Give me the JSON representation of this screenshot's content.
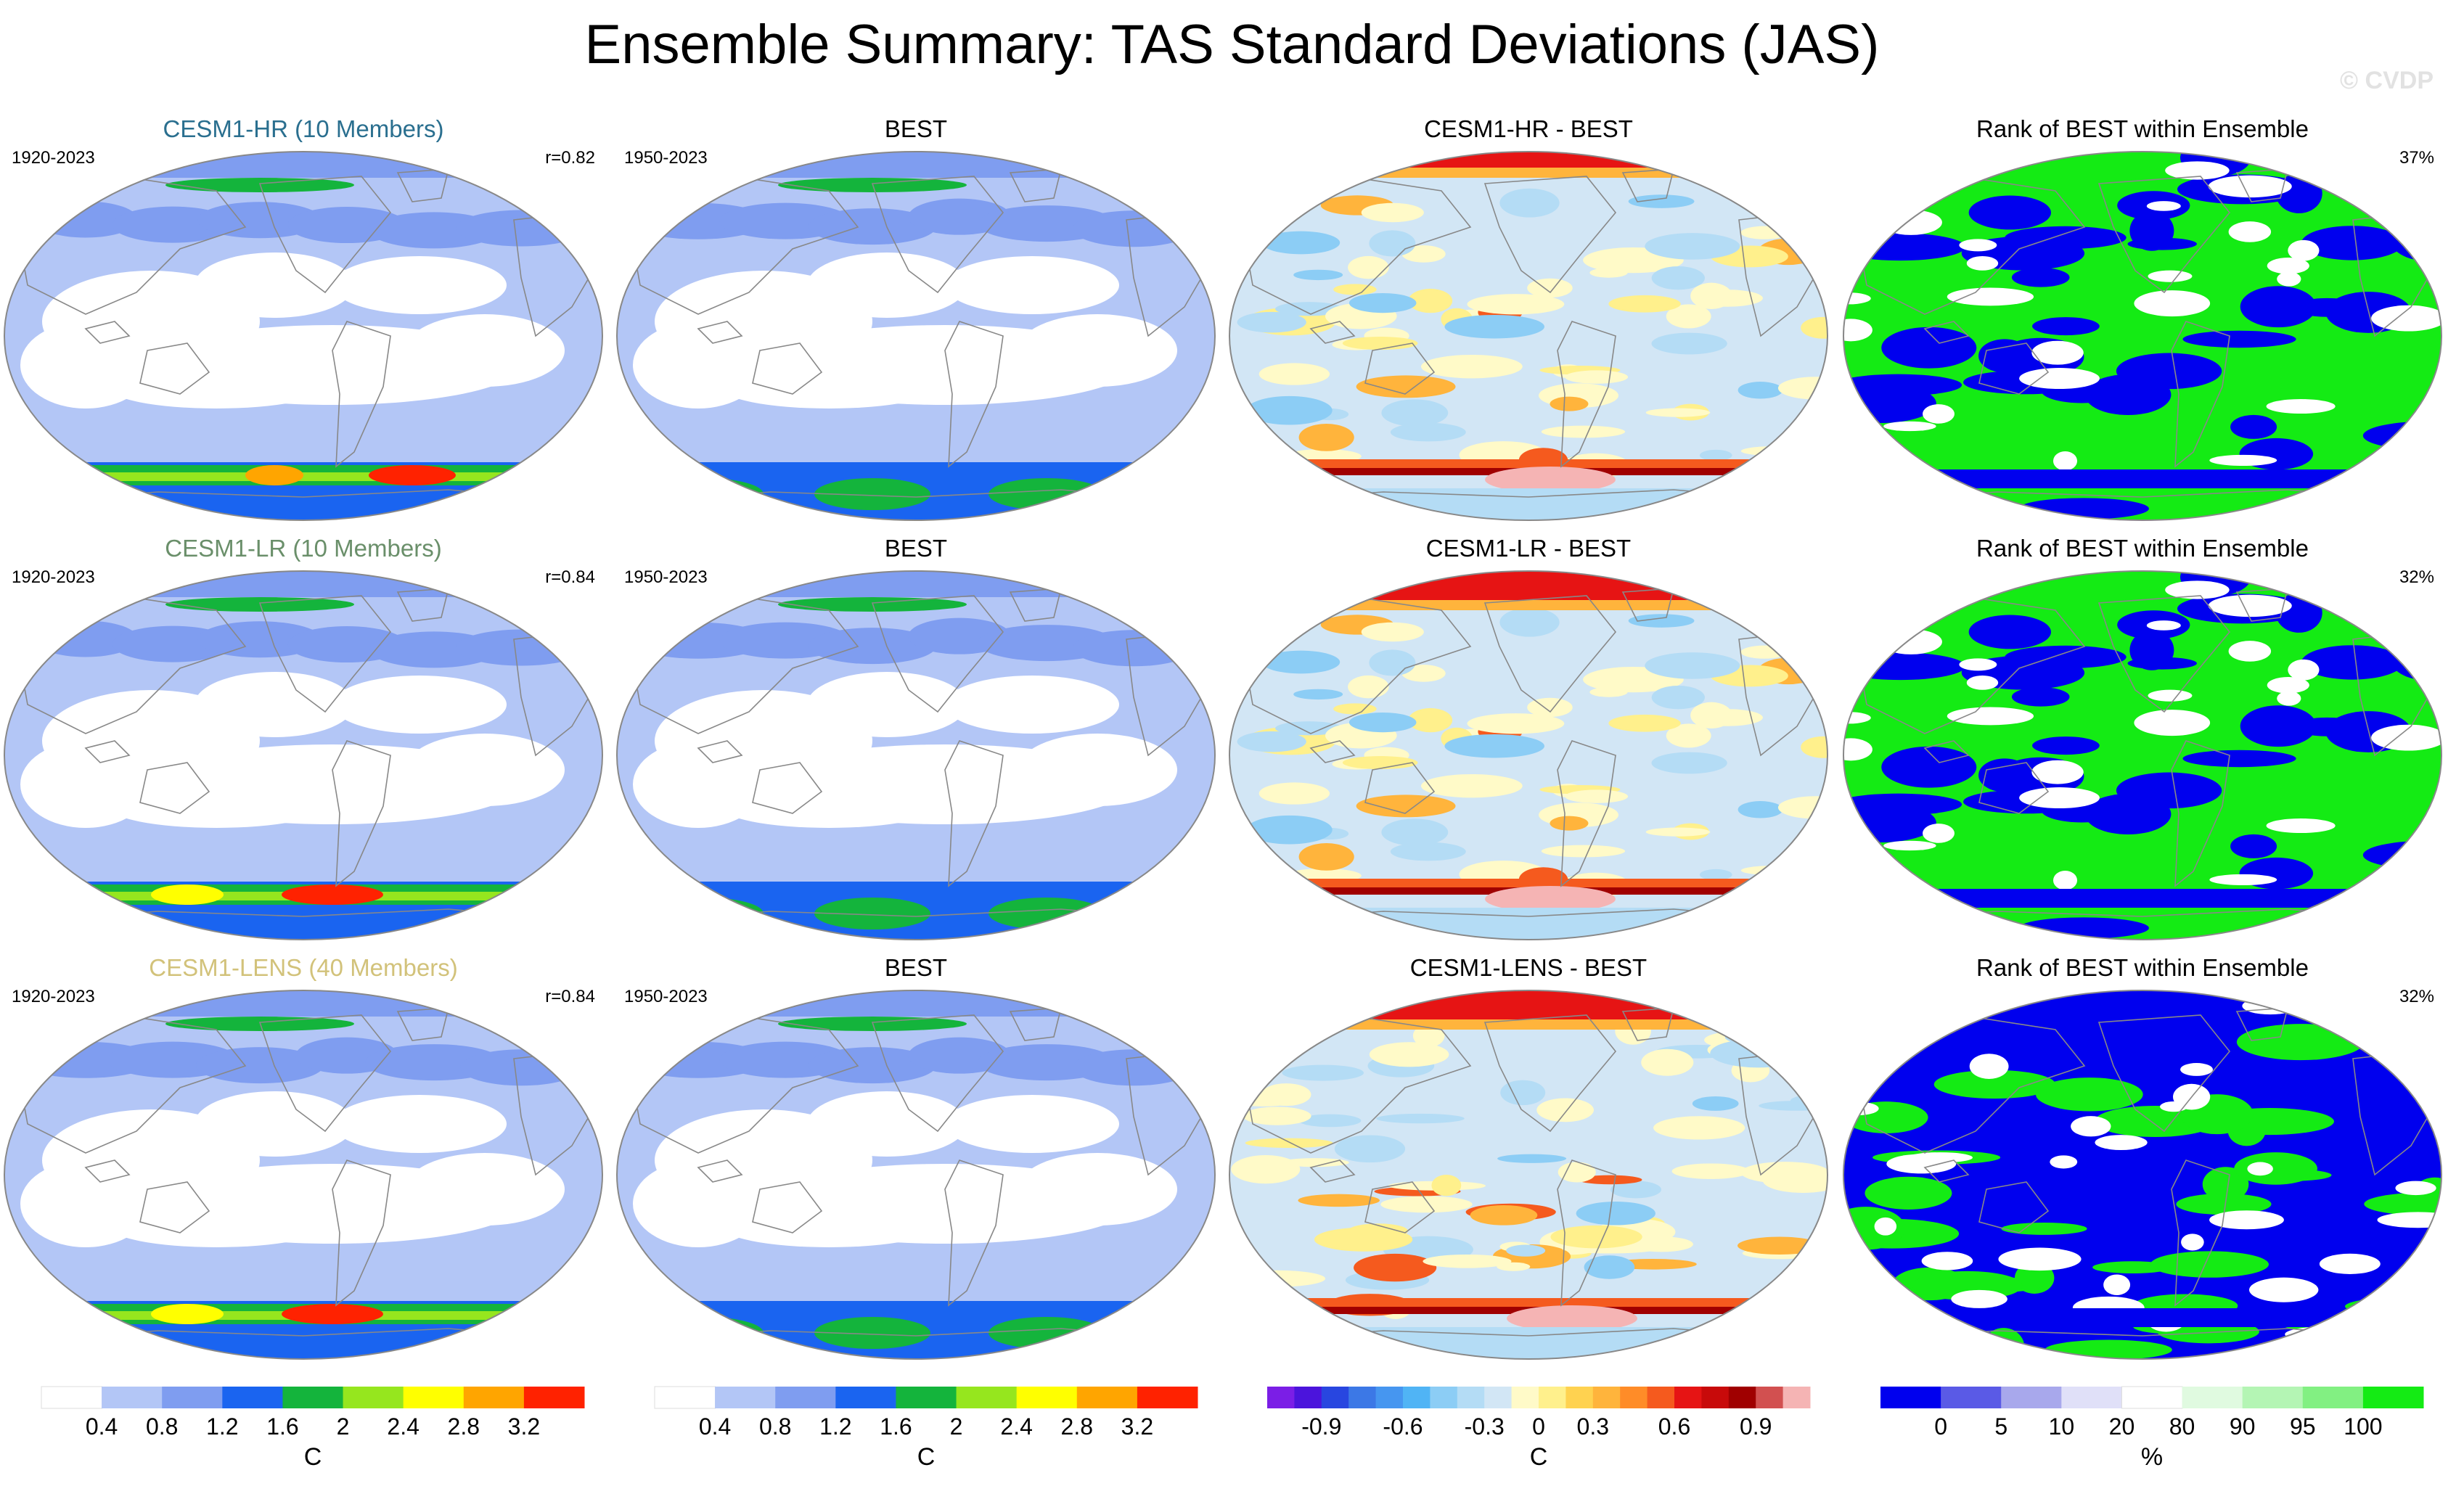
{
  "title": "Ensemble Summary: TAS Standard Deviations (JAS)",
  "copyright": "© CVDP",
  "colors": {
    "hr_title": "#2a6f8f",
    "lr_title": "#6a8f6a",
    "lens_title": "#d2c27a",
    "ocean_bg": "#ffffff",
    "land_line": "#888888"
  },
  "chart_data": {
    "type": "panel-grid",
    "rows": [
      {
        "panels": [
          {
            "kind": "std",
            "title": "CESM1-HR (10 Members)",
            "title_color": "#2a6f8f",
            "left_label": "1920-2023",
            "right_label": "r=0.82",
            "variant": "hr"
          },
          {
            "kind": "std",
            "title": "BEST",
            "title_color": "#000000",
            "left_label": "1950-2023",
            "right_label": "",
            "variant": "best"
          },
          {
            "kind": "diff",
            "title": "CESM1-HR - BEST",
            "title_color": "#000000",
            "left_label": "",
            "right_label": "",
            "variant": "hr"
          },
          {
            "kind": "rank",
            "title": "Rank of BEST within Ensemble",
            "title_color": "#000000",
            "left_label": "",
            "right_label": "37%",
            "variant": "hr"
          }
        ]
      },
      {
        "panels": [
          {
            "kind": "std",
            "title": "CESM1-LR (10 Members)",
            "title_color": "#6a8f6a",
            "left_label": "1920-2023",
            "right_label": "r=0.84",
            "variant": "lr"
          },
          {
            "kind": "std",
            "title": "BEST",
            "title_color": "#000000",
            "left_label": "1950-2023",
            "right_label": "",
            "variant": "best"
          },
          {
            "kind": "diff",
            "title": "CESM1-LR - BEST",
            "title_color": "#000000",
            "left_label": "",
            "right_label": "",
            "variant": "lr"
          },
          {
            "kind": "rank",
            "title": "Rank of BEST within Ensemble",
            "title_color": "#000000",
            "left_label": "",
            "right_label": "32%",
            "variant": "lr"
          }
        ]
      },
      {
        "panels": [
          {
            "kind": "std",
            "title": "CESM1-LENS (40 Members)",
            "title_color": "#d2c27a",
            "left_label": "1920-2023",
            "right_label": "r=0.84",
            "variant": "lens"
          },
          {
            "kind": "std",
            "title": "BEST",
            "title_color": "#000000",
            "left_label": "1950-2023",
            "right_label": "",
            "variant": "best"
          },
          {
            "kind": "diff",
            "title": "CESM1-LENS - BEST",
            "title_color": "#000000",
            "left_label": "",
            "right_label": "",
            "variant": "lens"
          },
          {
            "kind": "rank",
            "title": "Rank of BEST within Ensemble",
            "title_color": "#000000",
            "left_label": "",
            "right_label": "32%",
            "variant": "lens"
          }
        ]
      }
    ],
    "colorbars": [
      {
        "name": "std",
        "colors": [
          "#ffffff",
          "#b3c6f6",
          "#7f9df0",
          "#1a64f0",
          "#14b43c",
          "#96e61e",
          "#ffff00",
          "#ffa500",
          "#ff2200"
        ],
        "tick_labels": [
          "0.4",
          "0.8",
          "1.2",
          "1.6",
          "2",
          "2.4",
          "2.8",
          "3.2"
        ],
        "unit": "C"
      },
      {
        "name": "std",
        "colors": [
          "#ffffff",
          "#b3c6f6",
          "#7f9df0",
          "#1a64f0",
          "#14b43c",
          "#96e61e",
          "#ffff00",
          "#ffa500",
          "#ff2200"
        ],
        "tick_labels": [
          "0.4",
          "0.8",
          "1.2",
          "1.6",
          "2",
          "2.4",
          "2.8",
          "3.2"
        ],
        "unit": "C"
      },
      {
        "name": "diff",
        "colors": [
          "#7b1ee6",
          "#4b14dc",
          "#2846e0",
          "#3c78e6",
          "#4696f0",
          "#50b4f5",
          "#8ccdf5",
          "#b4dcf5",
          "#d2e6f5",
          "#fffac8",
          "#fff08c",
          "#ffd250",
          "#ffb43c",
          "#ff8c28",
          "#f55a1e",
          "#e61414",
          "#c80a0a",
          "#a00000",
          "#d25050",
          "#f5b4b4"
        ],
        "tick_labels": [
          "-0.9",
          "-0.6",
          "-0.3",
          "0",
          "0.3",
          "0.6",
          "0.9"
        ],
        "tick_index": [
          2,
          5,
          8,
          10,
          12,
          15,
          18
        ],
        "unit": "C"
      },
      {
        "name": "rank",
        "colors": [
          "#0000ee",
          "#5a5ae6",
          "#a8a8ec",
          "#e0e0f8",
          "#ffffff",
          "#e0fae0",
          "#b4f5b4",
          "#82f082",
          "#14eb14"
        ],
        "tick_labels": [
          "0",
          "5",
          "10",
          "20",
          "80",
          "90",
          "95",
          "100"
        ],
        "unit": "%"
      }
    ]
  }
}
